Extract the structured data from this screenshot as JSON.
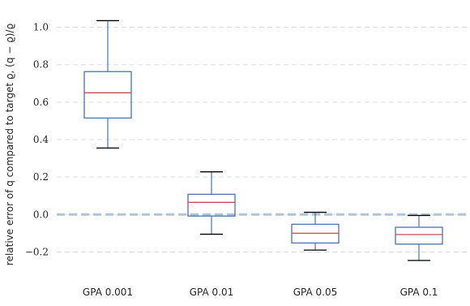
{
  "chart_data": {
    "type": "box",
    "ylabel": "relative error of q compared to target ϱ, (q − ϱ)/ϱ",
    "categories": [
      "GPA 0.001",
      "GPA 0.01",
      "GPA 0.05",
      "GPA 0.1"
    ],
    "boxes": [
      {
        "whislo": 0.355,
        "q1": 0.515,
        "med": 0.65,
        "q3": 0.763,
        "whishi": 1.035
      },
      {
        "whislo": -0.105,
        "q1": -0.008,
        "med": 0.065,
        "q3": 0.108,
        "whishi": 0.228
      },
      {
        "whislo": -0.19,
        "q1": -0.152,
        "med": -0.1,
        "q3": -0.052,
        "whishi": 0.012
      },
      {
        "whislo": -0.245,
        "q1": -0.158,
        "med": -0.107,
        "q3": -0.068,
        "whishi": -0.005
      }
    ],
    "reference_line": 0.0,
    "yticks": [
      -0.2,
      0.0,
      0.2,
      0.4,
      0.6,
      0.8,
      1.0
    ],
    "ytick_labels": [
      "−0.2",
      "0.0",
      "0.2",
      "0.4",
      "0.6",
      "0.8",
      "1.0"
    ],
    "ylim": [
      -0.315,
      1.115
    ],
    "grid": true,
    "colors": {
      "box": "#4c72b0",
      "median": "#c44e52",
      "whisker_cap": "#000000",
      "grid": "#dddddd",
      "reference_line": "#b0c4de"
    }
  }
}
